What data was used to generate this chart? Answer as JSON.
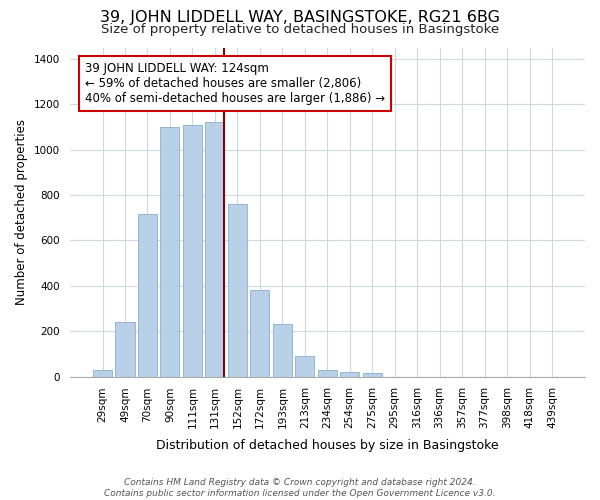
{
  "title": "39, JOHN LIDDELL WAY, BASINGSTOKE, RG21 6BG",
  "subtitle": "Size of property relative to detached houses in Basingstoke",
  "xlabel": "Distribution of detached houses by size in Basingstoke",
  "ylabel": "Number of detached properties",
  "footer_line1": "Contains HM Land Registry data © Crown copyright and database right 2024.",
  "footer_line2": "Contains public sector information licensed under the Open Government Licence v3.0.",
  "bar_labels": [
    "29sqm",
    "49sqm",
    "70sqm",
    "90sqm",
    "111sqm",
    "131sqm",
    "152sqm",
    "172sqm",
    "193sqm",
    "213sqm",
    "234sqm",
    "254sqm",
    "275sqm",
    "295sqm",
    "316sqm",
    "336sqm",
    "357sqm",
    "377sqm",
    "398sqm",
    "418sqm",
    "439sqm"
  ],
  "bar_values": [
    30,
    240,
    715,
    1100,
    1110,
    1120,
    760,
    380,
    230,
    90,
    30,
    18,
    15,
    0,
    0,
    0,
    0,
    0,
    0,
    0,
    0
  ],
  "bar_color": "#b8d0e8",
  "bar_edge_color": "#8aaecb",
  "grid_color": "#d0d8e4",
  "vline_x": 5.42,
  "vline_color": "#8b0000",
  "annotation_title": "39 JOHN LIDDELL WAY: 124sqm",
  "annotation_line2": "← 59% of detached houses are smaller (2,806)",
  "annotation_line3": "40% of semi-detached houses are larger (1,886) →",
  "annotation_box_color": "white",
  "annotation_box_edge_color": "#cc0000",
  "ylim": [
    0,
    1450
  ],
  "yticks": [
    0,
    200,
    400,
    600,
    800,
    1000,
    1200,
    1400
  ],
  "title_fontsize": 11.5,
  "subtitle_fontsize": 9.5,
  "xlabel_fontsize": 9,
  "ylabel_fontsize": 8.5,
  "annotation_fontsize": 8.5,
  "tick_fontsize": 7.5,
  "footer_fontsize": 6.5
}
